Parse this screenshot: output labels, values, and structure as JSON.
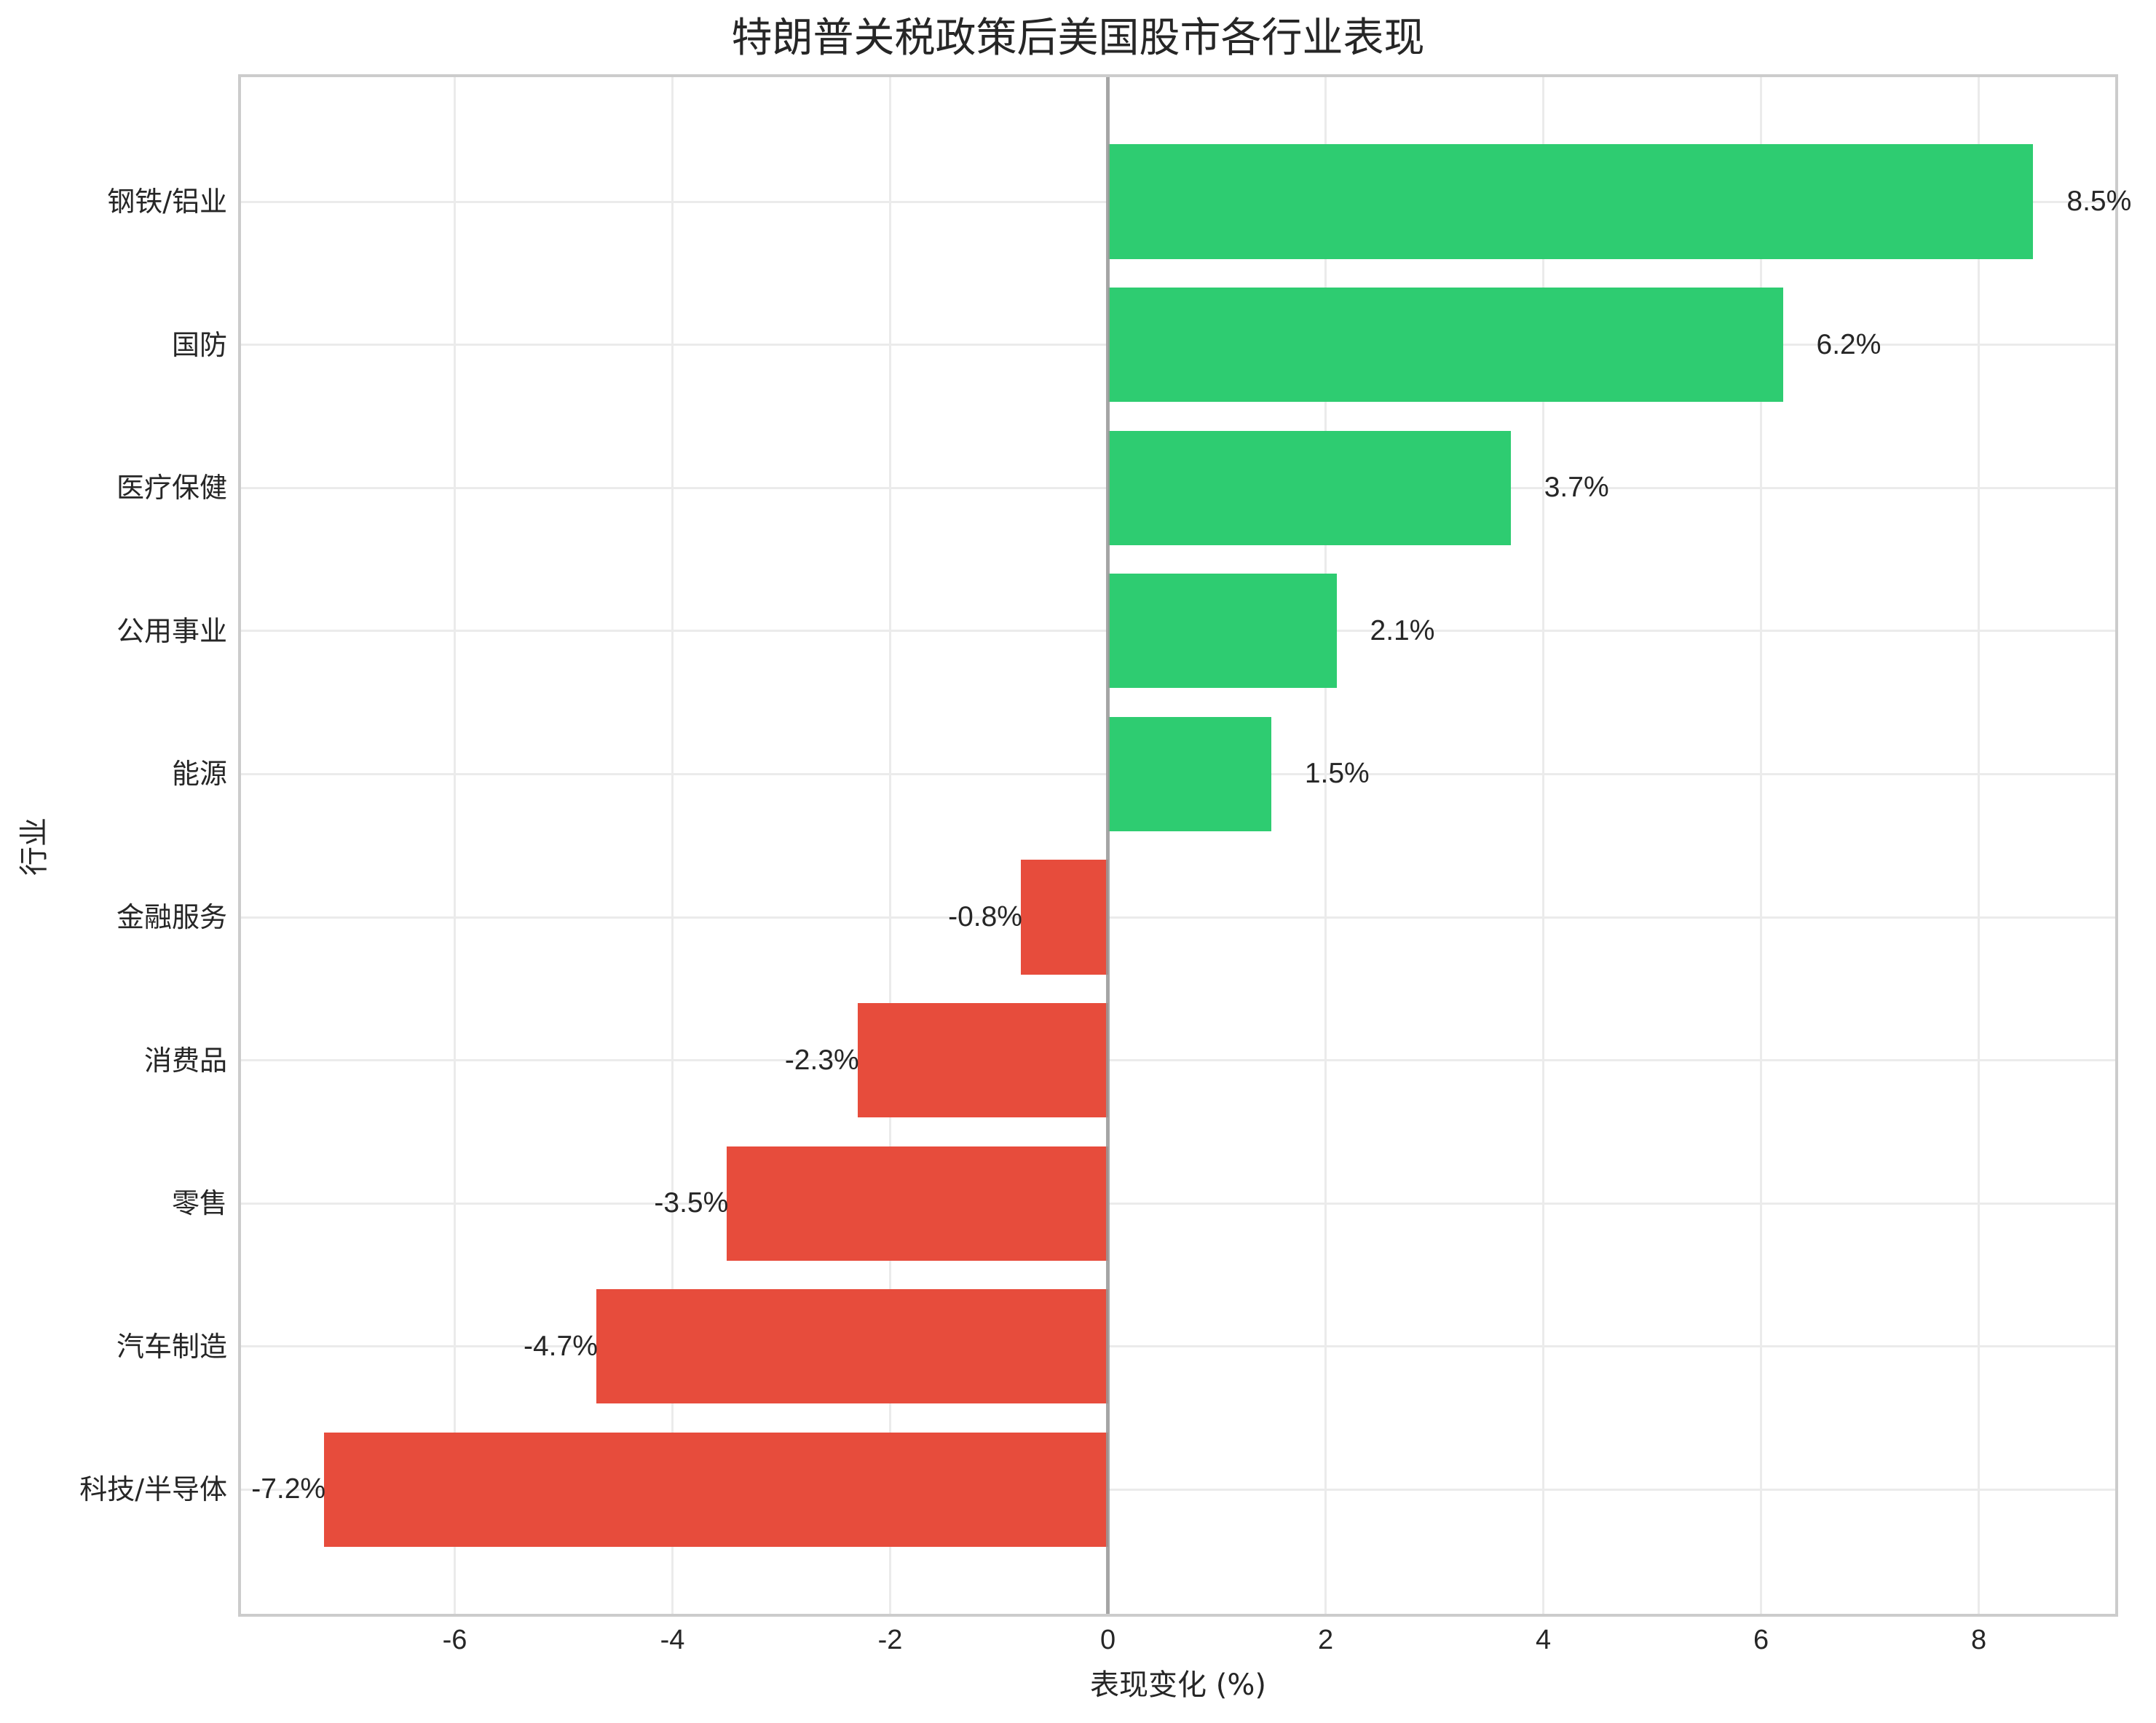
{
  "chart_data": {
    "type": "bar",
    "orientation": "horizontal",
    "title": "特朗普关税政策后美国股市各行业表现",
    "xlabel": "表现变化 (%)",
    "ylabel": "行业",
    "categories": [
      "钢铁/铝业",
      "国防",
      "医疗保健",
      "公用事业",
      "能源",
      "金融服务",
      "消费品",
      "零售",
      "汽车制造",
      "科技/半导体"
    ],
    "values": [
      8.5,
      6.2,
      3.7,
      2.1,
      1.5,
      -0.8,
      -2.3,
      -3.5,
      -4.7,
      -7.2
    ],
    "value_labels": [
      "8.5%",
      "6.2%",
      "3.7%",
      "2.1%",
      "1.5%",
      "-0.8%",
      "-2.3%",
      "-3.5%",
      "-4.7%",
      "-7.2%"
    ],
    "xticks": [
      -6,
      -4,
      -2,
      0,
      2,
      4,
      6,
      8
    ],
    "xtick_labels": [
      "-6",
      "-4",
      "-2",
      "0",
      "2",
      "4",
      "6",
      "8"
    ],
    "xlim": [
      -7.99,
      9.28
    ],
    "grid": true,
    "legend": null,
    "colors": {
      "positive": "#2ecc71",
      "negative": "#e74c3c",
      "zero_line": "#999999",
      "grid": "#ebebeb",
      "spine": "#cccccc"
    }
  }
}
